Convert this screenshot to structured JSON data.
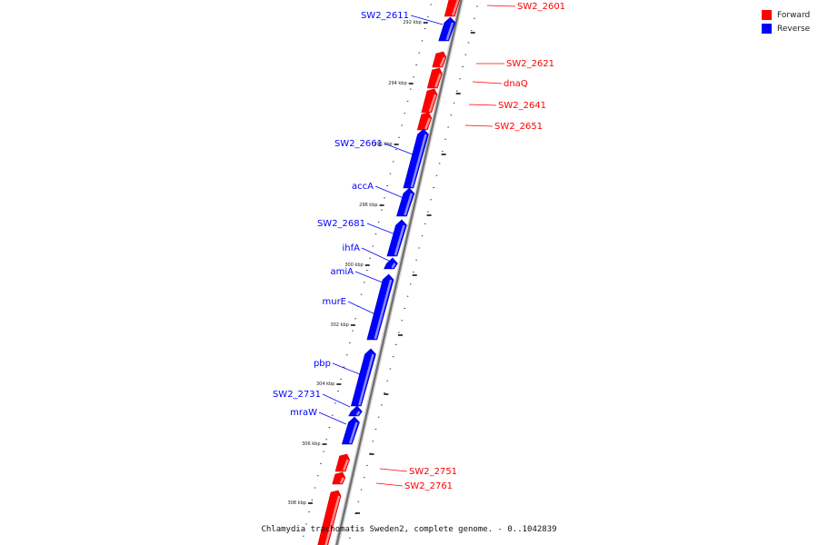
{
  "caption": "Chlamydia trachomatis Sweden2, complete genome. - 0..1042839",
  "legend": [
    {
      "label": "Forward",
      "color": "#ff0000"
    },
    {
      "label": "Reverse",
      "color": "#0000ff"
    }
  ],
  "scale": {
    "unit": "kbp",
    "labels": [
      "292 kbp",
      "294 kbp",
      "296 kbp",
      "298 kbp",
      "300 kbp",
      "302 kbp",
      "304 kbp",
      "306 kbp",
      "308 kbp"
    ]
  },
  "genes": [
    {
      "label": "SW2_2601",
      "strand": "forward"
    },
    {
      "label": "SW2_2611",
      "strand": "reverse"
    },
    {
      "label": "SW2_2621",
      "strand": "forward"
    },
    {
      "label": "dnaQ",
      "strand": "forward"
    },
    {
      "label": "SW2_2641",
      "strand": "forward"
    },
    {
      "label": "SW2_2651",
      "strand": "forward"
    },
    {
      "label": "SW2_2661",
      "strand": "reverse"
    },
    {
      "label": "accA",
      "strand": "reverse"
    },
    {
      "label": "SW2_2681",
      "strand": "reverse"
    },
    {
      "label": "ihfA",
      "strand": "reverse"
    },
    {
      "label": "amiA",
      "strand": "reverse"
    },
    {
      "label": "murE",
      "strand": "reverse"
    },
    {
      "label": "pbp",
      "strand": "reverse"
    },
    {
      "label": "SW2_2731",
      "strand": "reverse"
    },
    {
      "label": "mraW",
      "strand": "reverse"
    },
    {
      "label": "SW2_2751",
      "strand": "forward"
    },
    {
      "label": "SW2_2761",
      "strand": "forward"
    },
    {
      "label": "",
      "strand": "forward"
    }
  ]
}
